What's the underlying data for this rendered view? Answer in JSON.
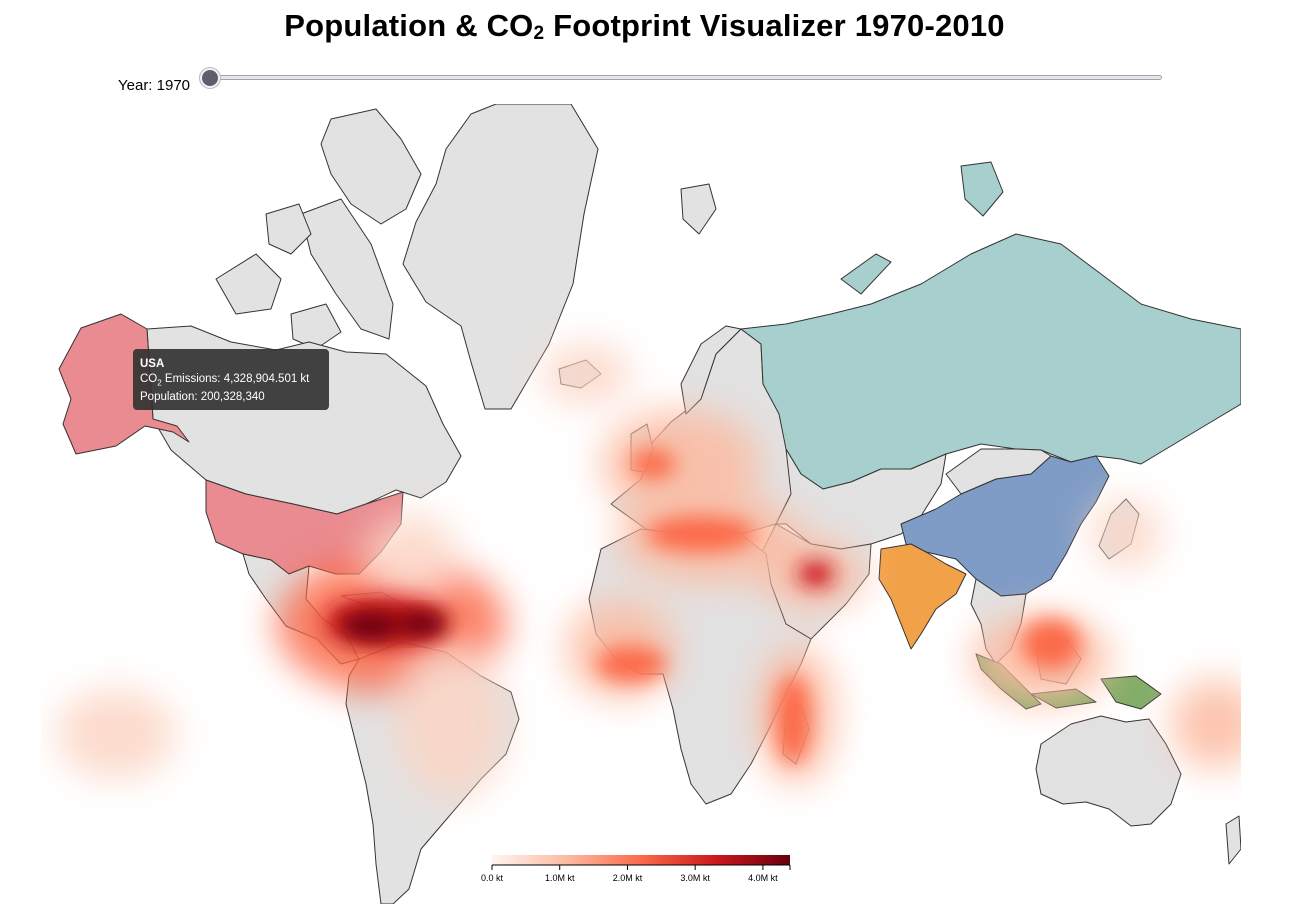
{
  "title": {
    "main": "Population & CO",
    "sub": "2",
    "rest": " Footprint Visualizer 1970-2010"
  },
  "year_control": {
    "label_prefix": "Year: ",
    "value": "1970",
    "min": 1970,
    "max": 2010,
    "fraction": 0.0
  },
  "tooltip": {
    "country": "USA",
    "co2_prefix": "CO",
    "co2_sub": "2",
    "co2_text": " Emissions: 4,328,904.501 kt",
    "population_text": "Population: 200,328,340"
  },
  "legend": {
    "ticks": [
      "0.0 kt",
      "1.0M kt",
      "2.0M kt",
      "3.0M kt",
      "4.0M kt"
    ],
    "tick_values": [
      0,
      1000000,
      2000000,
      3000000,
      4000000
    ],
    "max_value": 4400000,
    "colors": [
      "#fff5f0",
      "#fcbba1",
      "#fb6a4a",
      "#cb181d",
      "#67000d"
    ]
  },
  "map": {
    "ocean_color": "#ffffff",
    "land_color": "#e2e2e2",
    "border_color": "#333333",
    "highlighted_countries": [
      {
        "name": "USA",
        "color": "#e98b90"
      },
      {
        "name": "Russia",
        "color": "#a7cfcd"
      },
      {
        "name": "China",
        "color": "#7f9cc6"
      },
      {
        "name": "India",
        "color": "#f1a248"
      },
      {
        "name": "Indonesia",
        "color": "#82ad69"
      }
    ]
  }
}
